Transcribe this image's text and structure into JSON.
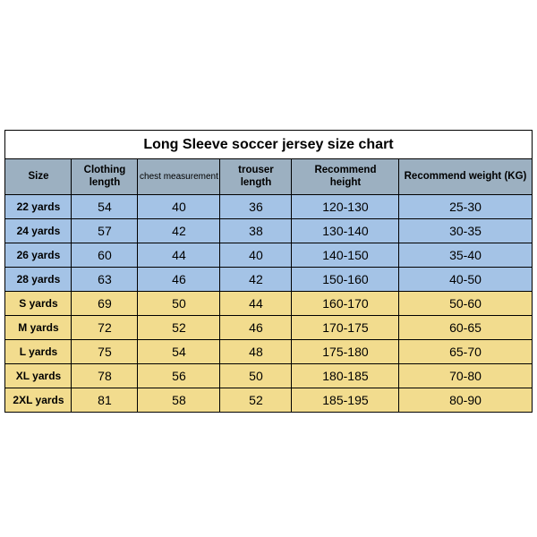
{
  "title": "Long Sleeve soccer jersey size chart",
  "columns": [
    {
      "key": "size",
      "label": "Size",
      "cls": "col-size"
    },
    {
      "key": "clothing",
      "label": "Clothing\nlength",
      "cls": "col-cloth"
    },
    {
      "key": "chest",
      "label": "chest measurement",
      "cls": "col-chest",
      "small": true
    },
    {
      "key": "trouser",
      "label": "trouser length",
      "cls": "col-trous"
    },
    {
      "key": "height",
      "label": "Recommend\nheight",
      "cls": "col-height"
    },
    {
      "key": "weight",
      "label": "Recommend weight (KG)",
      "cls": "col-weight"
    }
  ],
  "colors": {
    "header_bg": "#9cb0c1",
    "blue_bg": "#a4c3e6",
    "yellow_bg": "#f2dc8e",
    "border": "#000000"
  },
  "rows": [
    {
      "group": "blue",
      "size": "22 yards",
      "clothing": "54",
      "chest": "40",
      "trouser": "36",
      "height": "120-130",
      "weight": "25-30"
    },
    {
      "group": "blue",
      "size": "24 yards",
      "clothing": "57",
      "chest": "42",
      "trouser": "38",
      "height": "130-140",
      "weight": "30-35"
    },
    {
      "group": "blue",
      "size": "26 yards",
      "clothing": "60",
      "chest": "44",
      "trouser": "40",
      "height": "140-150",
      "weight": "35-40"
    },
    {
      "group": "blue",
      "size": "28 yards",
      "clothing": "63",
      "chest": "46",
      "trouser": "42",
      "height": "150-160",
      "weight": "40-50"
    },
    {
      "group": "yellow",
      "size": "S yards",
      "clothing": "69",
      "chest": "50",
      "trouser": "44",
      "height": "160-170",
      "weight": "50-60"
    },
    {
      "group": "yellow",
      "size": "M yards",
      "clothing": "72",
      "chest": "52",
      "trouser": "46",
      "height": "170-175",
      "weight": "60-65"
    },
    {
      "group": "yellow",
      "size": "L yards",
      "clothing": "75",
      "chest": "54",
      "trouser": "48",
      "height": "175-180",
      "weight": "65-70"
    },
    {
      "group": "yellow",
      "size": "XL yards",
      "clothing": "78",
      "chest": "56",
      "trouser": "50",
      "height": "180-185",
      "weight": "70-80"
    },
    {
      "group": "yellow",
      "size": "2XL yards",
      "clothing": "81",
      "chest": "58",
      "trouser": "52",
      "height": "185-195",
      "weight": "80-90"
    }
  ]
}
